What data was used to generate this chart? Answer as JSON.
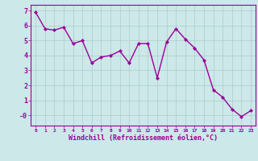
{
  "x": [
    0,
    1,
    2,
    3,
    4,
    5,
    6,
    7,
    8,
    9,
    10,
    11,
    12,
    13,
    14,
    15,
    16,
    17,
    18,
    19,
    20,
    21,
    22,
    23
  ],
  "y": [
    6.9,
    5.8,
    5.7,
    5.9,
    4.8,
    5.0,
    3.5,
    3.9,
    4.0,
    4.3,
    3.5,
    4.8,
    4.8,
    2.5,
    4.9,
    5.8,
    5.1,
    4.5,
    3.7,
    1.7,
    1.2,
    0.4,
    -0.1,
    0.3
  ],
  "line_color": "#990099",
  "marker": "D",
  "marker_size": 2.0,
  "line_width": 1.0,
  "bg_color": "#cce8e8",
  "grid_color": "#aacccc",
  "xlabel": "Windchill (Refroidissement éolien,°C)",
  "xlabel_color": "#990099",
  "tick_color": "#990099",
  "ylim": [
    -0.7,
    7.4
  ],
  "xlim": [
    -0.5,
    23.5
  ],
  "yticks": [
    0,
    1,
    2,
    3,
    4,
    5,
    6,
    7
  ],
  "ytick_labels": [
    "-0",
    "1",
    "2",
    "3",
    "4",
    "5",
    "6",
    "7"
  ],
  "xtick_positions": [
    0,
    1,
    2,
    3,
    4,
    5,
    6,
    7,
    8,
    9,
    10,
    11,
    12,
    13,
    14,
    15,
    16,
    17,
    18,
    19,
    20,
    21,
    22,
    23
  ],
  "xtick_labels": [
    "0",
    "1",
    "2",
    "3",
    "4",
    "5",
    "6",
    "7",
    "8",
    "9",
    "10",
    "11",
    "12",
    "13",
    "14",
    "15",
    "16",
    "17",
    "18",
    "19",
    "20",
    "21",
    "22",
    "23"
  ]
}
